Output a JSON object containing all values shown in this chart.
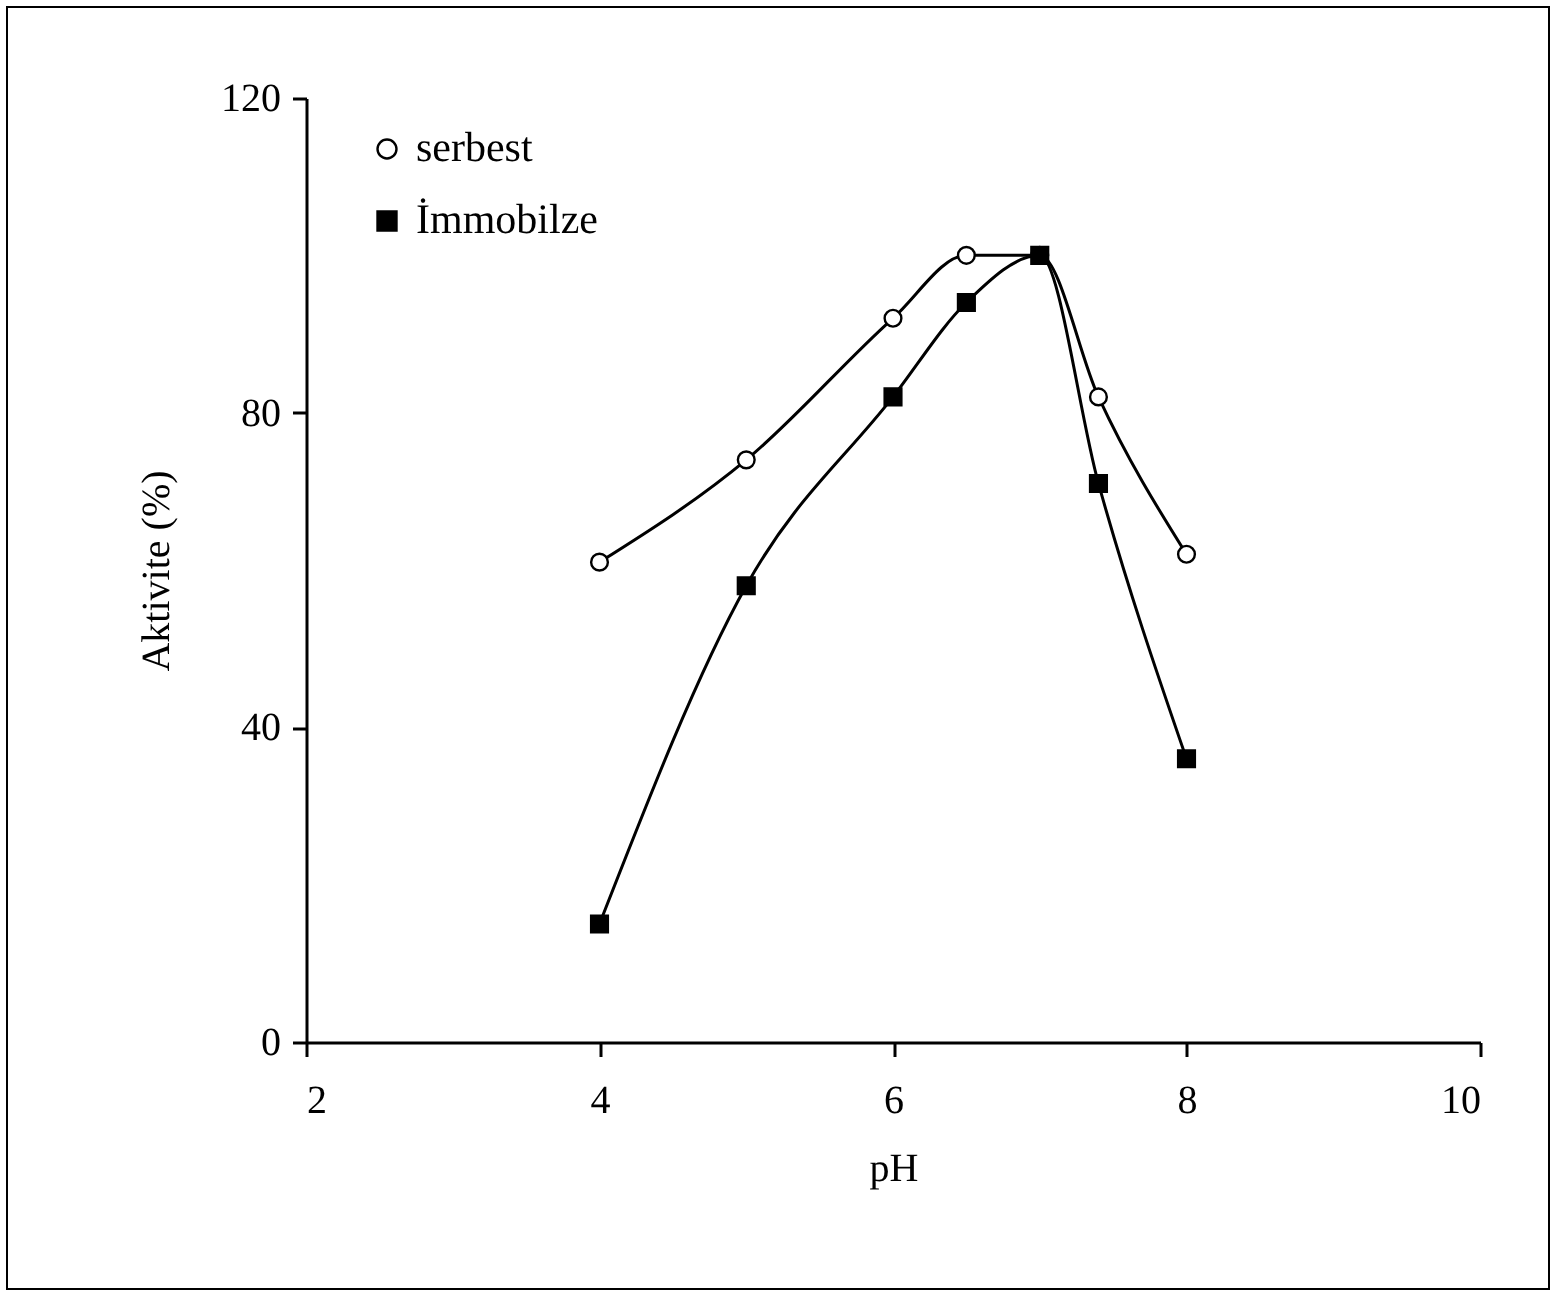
{
  "chart_data": {
    "type": "line",
    "xlabel": "pH",
    "ylabel": "Aktivite (%)",
    "xlim": [
      2,
      10
    ],
    "xticks": [
      2,
      4,
      6,
      8,
      10
    ],
    "ylim": [
      0,
      120
    ],
    "yticks": [
      0,
      40,
      80,
      120
    ],
    "grid": false,
    "legend": "top left",
    "line_style": "solid",
    "series": [
      {
        "name": "serbest",
        "color": "#000000",
        "marker": "circle",
        "x": [
          4,
          5,
          6,
          6.5,
          7,
          7.4,
          8
        ],
        "values": [
          61,
          74,
          92,
          100,
          100,
          82,
          62
        ]
      },
      {
        "name": "İmmobilze",
        "color": "#000000",
        "marker": "square",
        "x": [
          4,
          5,
          6,
          6.5,
          7,
          7.4,
          8
        ],
        "values": [
          15,
          58,
          82,
          94,
          100,
          71,
          36
        ]
      }
    ]
  }
}
